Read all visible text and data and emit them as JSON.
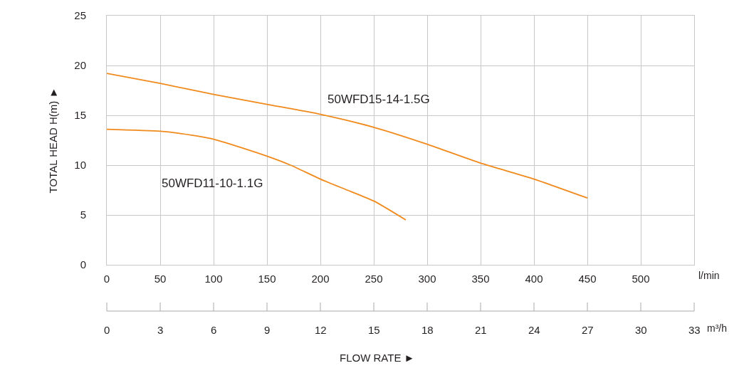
{
  "chart_data": {
    "type": "line",
    "xlabel": "l/min",
    "x2label": "m³/h",
    "ylabel": "TOTAL HEAD H(m) ►",
    "annotations": [
      "FLOW RATE ►"
    ],
    "xlim": [
      0,
      550
    ],
    "xticks": [
      0,
      50,
      100,
      150,
      200,
      250,
      300,
      350,
      400,
      450,
      500
    ],
    "x2lim": [
      0,
      33
    ],
    "x2ticks": [
      0,
      3,
      6,
      9,
      12,
      15,
      18,
      21,
      24,
      27,
      30,
      33
    ],
    "ylim": [
      0,
      25
    ],
    "yticks": [
      0,
      5,
      10,
      15,
      20,
      25
    ],
    "grid": true,
    "legend": false,
    "marker": "none",
    "line_style": "solid",
    "series": [
      {
        "name": "50WFD15-14-1.5G",
        "color": "#f08a1c",
        "x": [
          0,
          50,
          100,
          150,
          200,
          250,
          300,
          350,
          400,
          450
        ],
        "values": [
          19.2,
          18.2,
          17.1,
          16.1,
          15.1,
          13.8,
          12.1,
          10.2,
          8.6,
          6.7
        ]
      },
      {
        "name": "50WFD11-10-1.1G",
        "color": "#f08a1c",
        "x": [
          0,
          50,
          67,
          100,
          150,
          172,
          200,
          225,
          250,
          280
        ],
        "values": [
          13.6,
          13.4,
          13.2,
          12.6,
          10.9,
          10.0,
          8.6,
          7.5,
          6.4,
          4.5
        ]
      }
    ]
  }
}
